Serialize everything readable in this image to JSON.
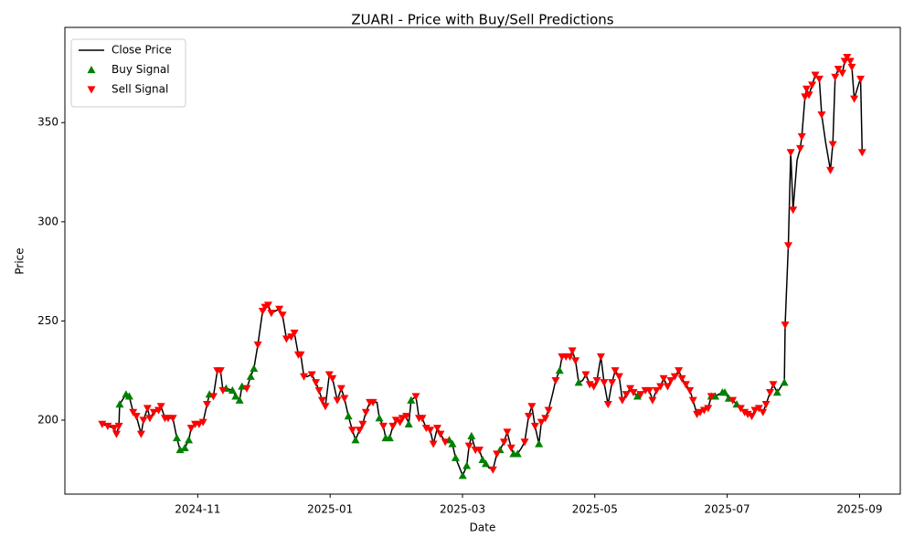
{
  "chart_data": {
    "type": "line",
    "title": "ZUARI - Price with Buy/Sell Predictions",
    "x_label": "Date",
    "y_label": "Price",
    "legend": "upper left",
    "grid": false,
    "xlim": [
      2024.666,
      2025.718
    ],
    "ylim": [
      162.7,
      398
    ],
    "xticks": [
      {
        "value": 2024.8333,
        "label": "2024-11"
      },
      {
        "value": 2025.0,
        "label": "2025-01"
      },
      {
        "value": 2025.1667,
        "label": "2025-03"
      },
      {
        "value": 2025.3333,
        "label": "2025-05"
      },
      {
        "value": 2025.5,
        "label": "2025-07"
      },
      {
        "value": 2025.6667,
        "label": "2025-09"
      }
    ],
    "yticks": [
      200,
      250,
      300,
      350
    ],
    "series": [
      {
        "name": "Close Price",
        "type": "line",
        "color": "#000000",
        "x": [
          2024.713,
          2024.72,
          2024.728,
          2024.731,
          2024.734,
          2024.735,
          2024.743,
          2024.747,
          2024.752,
          2024.756,
          2024.762,
          2024.765,
          2024.77,
          2024.773,
          2024.778,
          2024.784,
          2024.787,
          2024.792,
          2024.796,
          2024.802,
          2024.807,
          2024.811,
          2024.817,
          2024.822,
          2024.825,
          2024.83,
          2024.835,
          2024.84,
          2024.845,
          2024.848,
          2024.853,
          2024.858,
          2024.862,
          2024.865,
          2024.869,
          2024.877,
          2024.881,
          2024.886,
          2024.889,
          2024.895,
          2024.9,
          2024.904,
          2024.909,
          2024.915,
          2024.918,
          2024.922,
          2024.926,
          2024.931,
          2024.936,
          2024.94,
          2024.945,
          2024.951,
          2024.955,
          2024.96,
          2024.963,
          2024.967,
          2024.971,
          2024.977,
          2024.982,
          2024.986,
          2024.99,
          2024.994,
          2024.999,
          2025.003,
          2025.009,
          2025.014,
          2025.018,
          2025.023,
          2025.028,
          2025.032,
          2025.037,
          2025.041,
          2025.045,
          2025.05,
          2025.054,
          2025.059,
          2025.062,
          2025.067,
          2025.07,
          2025.075,
          2025.079,
          2025.083,
          2025.088,
          2025.091,
          2025.096,
          2025.099,
          2025.102,
          2025.108,
          2025.112,
          2025.116,
          2025.121,
          2025.126,
          2025.13,
          2025.135,
          2025.139,
          2025.145,
          2025.15,
          2025.154,
          2025.158,
          2025.162,
          2025.167,
          2025.172,
          2025.175,
          2025.178,
          2025.183,
          2025.188,
          2025.192,
          2025.196,
          2025.2,
          2025.205,
          2025.21,
          2025.214,
          2025.219,
          2025.223,
          2025.228,
          2025.231,
          2025.236,
          2025.241,
          2025.245,
          2025.25,
          2025.254,
          2025.258,
          2025.263,
          2025.266,
          2025.271,
          2025.275,
          2025.28,
          2025.284,
          2025.289,
          2025.292,
          2025.297,
          2025.302,
          2025.305,
          2025.309,
          2025.313,
          2025.318,
          2025.322,
          2025.327,
          2025.332,
          2025.336,
          2025.341,
          2025.345,
          2025.35,
          2025.355,
          2025.359,
          2025.364,
          2025.368,
          2025.373,
          2025.378,
          2025.382,
          2025.387,
          2025.391,
          2025.397,
          2025.402,
          2025.406,
          2025.411,
          2025.416,
          2025.42,
          2025.425,
          2025.429,
          2025.434,
          2025.439,
          2025.443,
          2025.448,
          2025.453,
          2025.457,
          2025.462,
          2025.466,
          2025.471,
          2025.476,
          2025.48,
          2025.485,
          2025.489,
          2025.494,
          2025.497,
          2025.502,
          2025.507,
          2025.512,
          2025.517,
          2025.522,
          2025.526,
          2025.531,
          2025.535,
          2025.54,
          2025.545,
          2025.549,
          2025.554,
          2025.558,
          2025.563,
          2025.568,
          2025.572,
          2025.573,
          2025.577,
          2025.58,
          2025.583,
          2025.588,
          2025.592,
          2025.594,
          2025.598,
          2025.6,
          2025.603,
          2025.607,
          2025.611,
          2025.616,
          2025.619,
          2025.624,
          2025.63,
          2025.633,
          2025.636,
          2025.64,
          2025.645,
          2025.648,
          2025.651,
          2025.655,
          2025.657,
          2025.66,
          2025.666,
          2025.668,
          2025.67
        ],
        "values": [
          198,
          197,
          196,
          193,
          197,
          208,
          213,
          212,
          204,
          202,
          193,
          200,
          206,
          201,
          204,
          205,
          207,
          201,
          201,
          201,
          191,
          185,
          186,
          190,
          196,
          198,
          198,
          199,
          208,
          213,
          212,
          225,
          225,
          215,
          216,
          215,
          212,
          210,
          217,
          216,
          222,
          226,
          238,
          255,
          257,
          258,
          254,
          255,
          256,
          253,
          241,
          242,
          244,
          233,
          233,
          222,
          222,
          223,
          219,
          215,
          210,
          207,
          223,
          221,
          210,
          216,
          211,
          202,
          195,
          190,
          195,
          198,
          204,
          209,
          209,
          209,
          201,
          197,
          191,
          191,
          197,
          200,
          199,
          201,
          202,
          198,
          210,
          212,
          201,
          201,
          196,
          195,
          188,
          196,
          193,
          189,
          190,
          188,
          181,
          177,
          172,
          177,
          187,
          192,
          185,
          185,
          180,
          178,
          176,
          175,
          183,
          185,
          189,
          194,
          186,
          183,
          183,
          186,
          189,
          202,
          207,
          197,
          188,
          199,
          201,
          205,
          213,
          220,
          225,
          232,
          232,
          232,
          235,
          230,
          219,
          220,
          223,
          218,
          217,
          220,
          232,
          219,
          208,
          219,
          225,
          222,
          210,
          213,
          216,
          214,
          212,
          213,
          215,
          215,
          210,
          215,
          217,
          221,
          217,
          220,
          222,
          225,
          221,
          218,
          215,
          210,
          203,
          204,
          205,
          206,
          212,
          212,
          213,
          214,
          214,
          211,
          210,
          208,
          206,
          204,
          203,
          202,
          205,
          206,
          204,
          208,
          214,
          218,
          214,
          217,
          219,
          248,
          288,
          335,
          306,
          331,
          337,
          343,
          363,
          367,
          364,
          369,
          374,
          372,
          354,
          340,
          326,
          339,
          373,
          377,
          375,
          381,
          383,
          381,
          378,
          362,
          370,
          372,
          335
        ]
      },
      {
        "name": "Buy Signal",
        "type": "scatter",
        "marker": "triangle-up",
        "color": "#008000",
        "x": [
          2024.735,
          2024.743,
          2024.747,
          2024.807,
          2024.811,
          2024.817,
          2024.822,
          2024.848,
          2024.869,
          2024.877,
          2024.881,
          2024.886,
          2024.889,
          2024.9,
          2024.904,
          2025.023,
          2025.032,
          2025.062,
          2025.07,
          2025.075,
          2025.099,
          2025.102,
          2025.15,
          2025.154,
          2025.158,
          2025.167,
          2025.172,
          2025.178,
          2025.192,
          2025.196,
          2025.214,
          2025.231,
          2025.236,
          2025.263,
          2025.289,
          2025.313,
          2025.387,
          2025.48,
          2025.485,
          2025.494,
          2025.497,
          2025.502,
          2025.512,
          2025.563,
          2025.572
        ],
        "values": [
          208,
          213,
          212,
          191,
          185,
          186,
          190,
          213,
          216,
          215,
          212,
          210,
          217,
          222,
          226,
          202,
          190,
          201,
          191,
          191,
          198,
          210,
          190,
          188,
          181,
          172,
          177,
          192,
          180,
          178,
          185,
          183,
          183,
          188,
          225,
          219,
          212,
          212,
          212,
          214,
          214,
          211,
          208,
          214,
          219
        ]
      },
      {
        "name": "Sell Signal",
        "type": "scatter",
        "marker": "triangle-down",
        "color": "#ff0000",
        "x": [
          2024.713,
          2024.72,
          2024.728,
          2024.731,
          2024.734,
          2024.752,
          2024.756,
          2024.762,
          2024.765,
          2024.77,
          2024.773,
          2024.778,
          2024.784,
          2024.787,
          2024.792,
          2024.796,
          2024.802,
          2024.825,
          2024.83,
          2024.835,
          2024.84,
          2024.845,
          2024.853,
          2024.858,
          2024.862,
          2024.865,
          2024.895,
          2024.909,
          2024.915,
          2024.918,
          2024.922,
          2024.926,
          2024.936,
          2024.94,
          2024.945,
          2024.951,
          2024.955,
          2024.96,
          2024.963,
          2024.967,
          2024.977,
          2024.982,
          2024.986,
          2024.99,
          2024.994,
          2024.999,
          2025.003,
          2025.009,
          2025.014,
          2025.018,
          2025.028,
          2025.037,
          2025.041,
          2025.045,
          2025.05,
          2025.054,
          2025.067,
          2025.079,
          2025.083,
          2025.088,
          2025.091,
          2025.096,
          2025.108,
          2025.112,
          2025.116,
          2025.121,
          2025.126,
          2025.13,
          2025.135,
          2025.139,
          2025.145,
          2025.175,
          2025.183,
          2025.188,
          2025.205,
          2025.21,
          2025.219,
          2025.223,
          2025.228,
          2025.245,
          2025.25,
          2025.254,
          2025.258,
          2025.266,
          2025.271,
          2025.275,
          2025.284,
          2025.292,
          2025.297,
          2025.302,
          2025.305,
          2025.309,
          2025.322,
          2025.327,
          2025.332,
          2025.336,
          2025.341,
          2025.345,
          2025.35,
          2025.355,
          2025.359,
          2025.364,
          2025.368,
          2025.373,
          2025.378,
          2025.382,
          2025.391,
          2025.397,
          2025.402,
          2025.406,
          2025.411,
          2025.416,
          2025.42,
          2025.425,
          2025.429,
          2025.434,
          2025.439,
          2025.443,
          2025.448,
          2025.453,
          2025.457,
          2025.462,
          2025.466,
          2025.471,
          2025.476,
          2025.48,
          2025.507,
          2025.517,
          2025.522,
          2025.526,
          2025.531,
          2025.535,
          2025.54,
          2025.545,
          2025.549,
          2025.554,
          2025.558,
          2025.573,
          2025.577,
          2025.58,
          2025.583,
          2025.592,
          2025.594,
          2025.598,
          2025.6,
          2025.603,
          2025.607,
          2025.611,
          2025.616,
          2025.619,
          2025.63,
          2025.633,
          2025.636,
          2025.64,
          2025.645,
          2025.648,
          2025.651,
          2025.655,
          2025.657,
          2025.66,
          2025.668,
          2025.67
        ],
        "values": [
          198,
          197,
          196,
          193,
          197,
          204,
          202,
          193,
          200,
          206,
          201,
          204,
          205,
          207,
          201,
          201,
          201,
          196,
          198,
          198,
          199,
          208,
          212,
          225,
          225,
          215,
          216,
          238,
          255,
          257,
          258,
          254,
          256,
          253,
          241,
          242,
          244,
          233,
          233,
          222,
          223,
          219,
          215,
          210,
          207,
          223,
          221,
          210,
          216,
          211,
          195,
          195,
          198,
          204,
          209,
          209,
          197,
          197,
          200,
          199,
          201,
          202,
          212,
          201,
          201,
          196,
          195,
          188,
          196,
          193,
          189,
          187,
          185,
          185,
          175,
          183,
          189,
          194,
          186,
          189,
          202,
          207,
          197,
          199,
          201,
          205,
          220,
          232,
          232,
          232,
          235,
          230,
          223,
          218,
          217,
          220,
          232,
          219,
          208,
          219,
          225,
          222,
          210,
          213,
          216,
          214,
          213,
          215,
          215,
          210,
          215,
          217,
          221,
          217,
          220,
          222,
          225,
          221,
          218,
          215,
          210,
          203,
          204,
          205,
          206,
          212,
          210,
          206,
          204,
          203,
          202,
          205,
          206,
          204,
          208,
          214,
          218,
          248,
          288,
          335,
          306,
          337,
          343,
          363,
          367,
          364,
          369,
          374,
          372,
          354,
          326,
          339,
          373,
          377,
          375,
          381,
          383,
          381,
          378,
          362,
          372,
          335
        ]
      }
    ]
  }
}
